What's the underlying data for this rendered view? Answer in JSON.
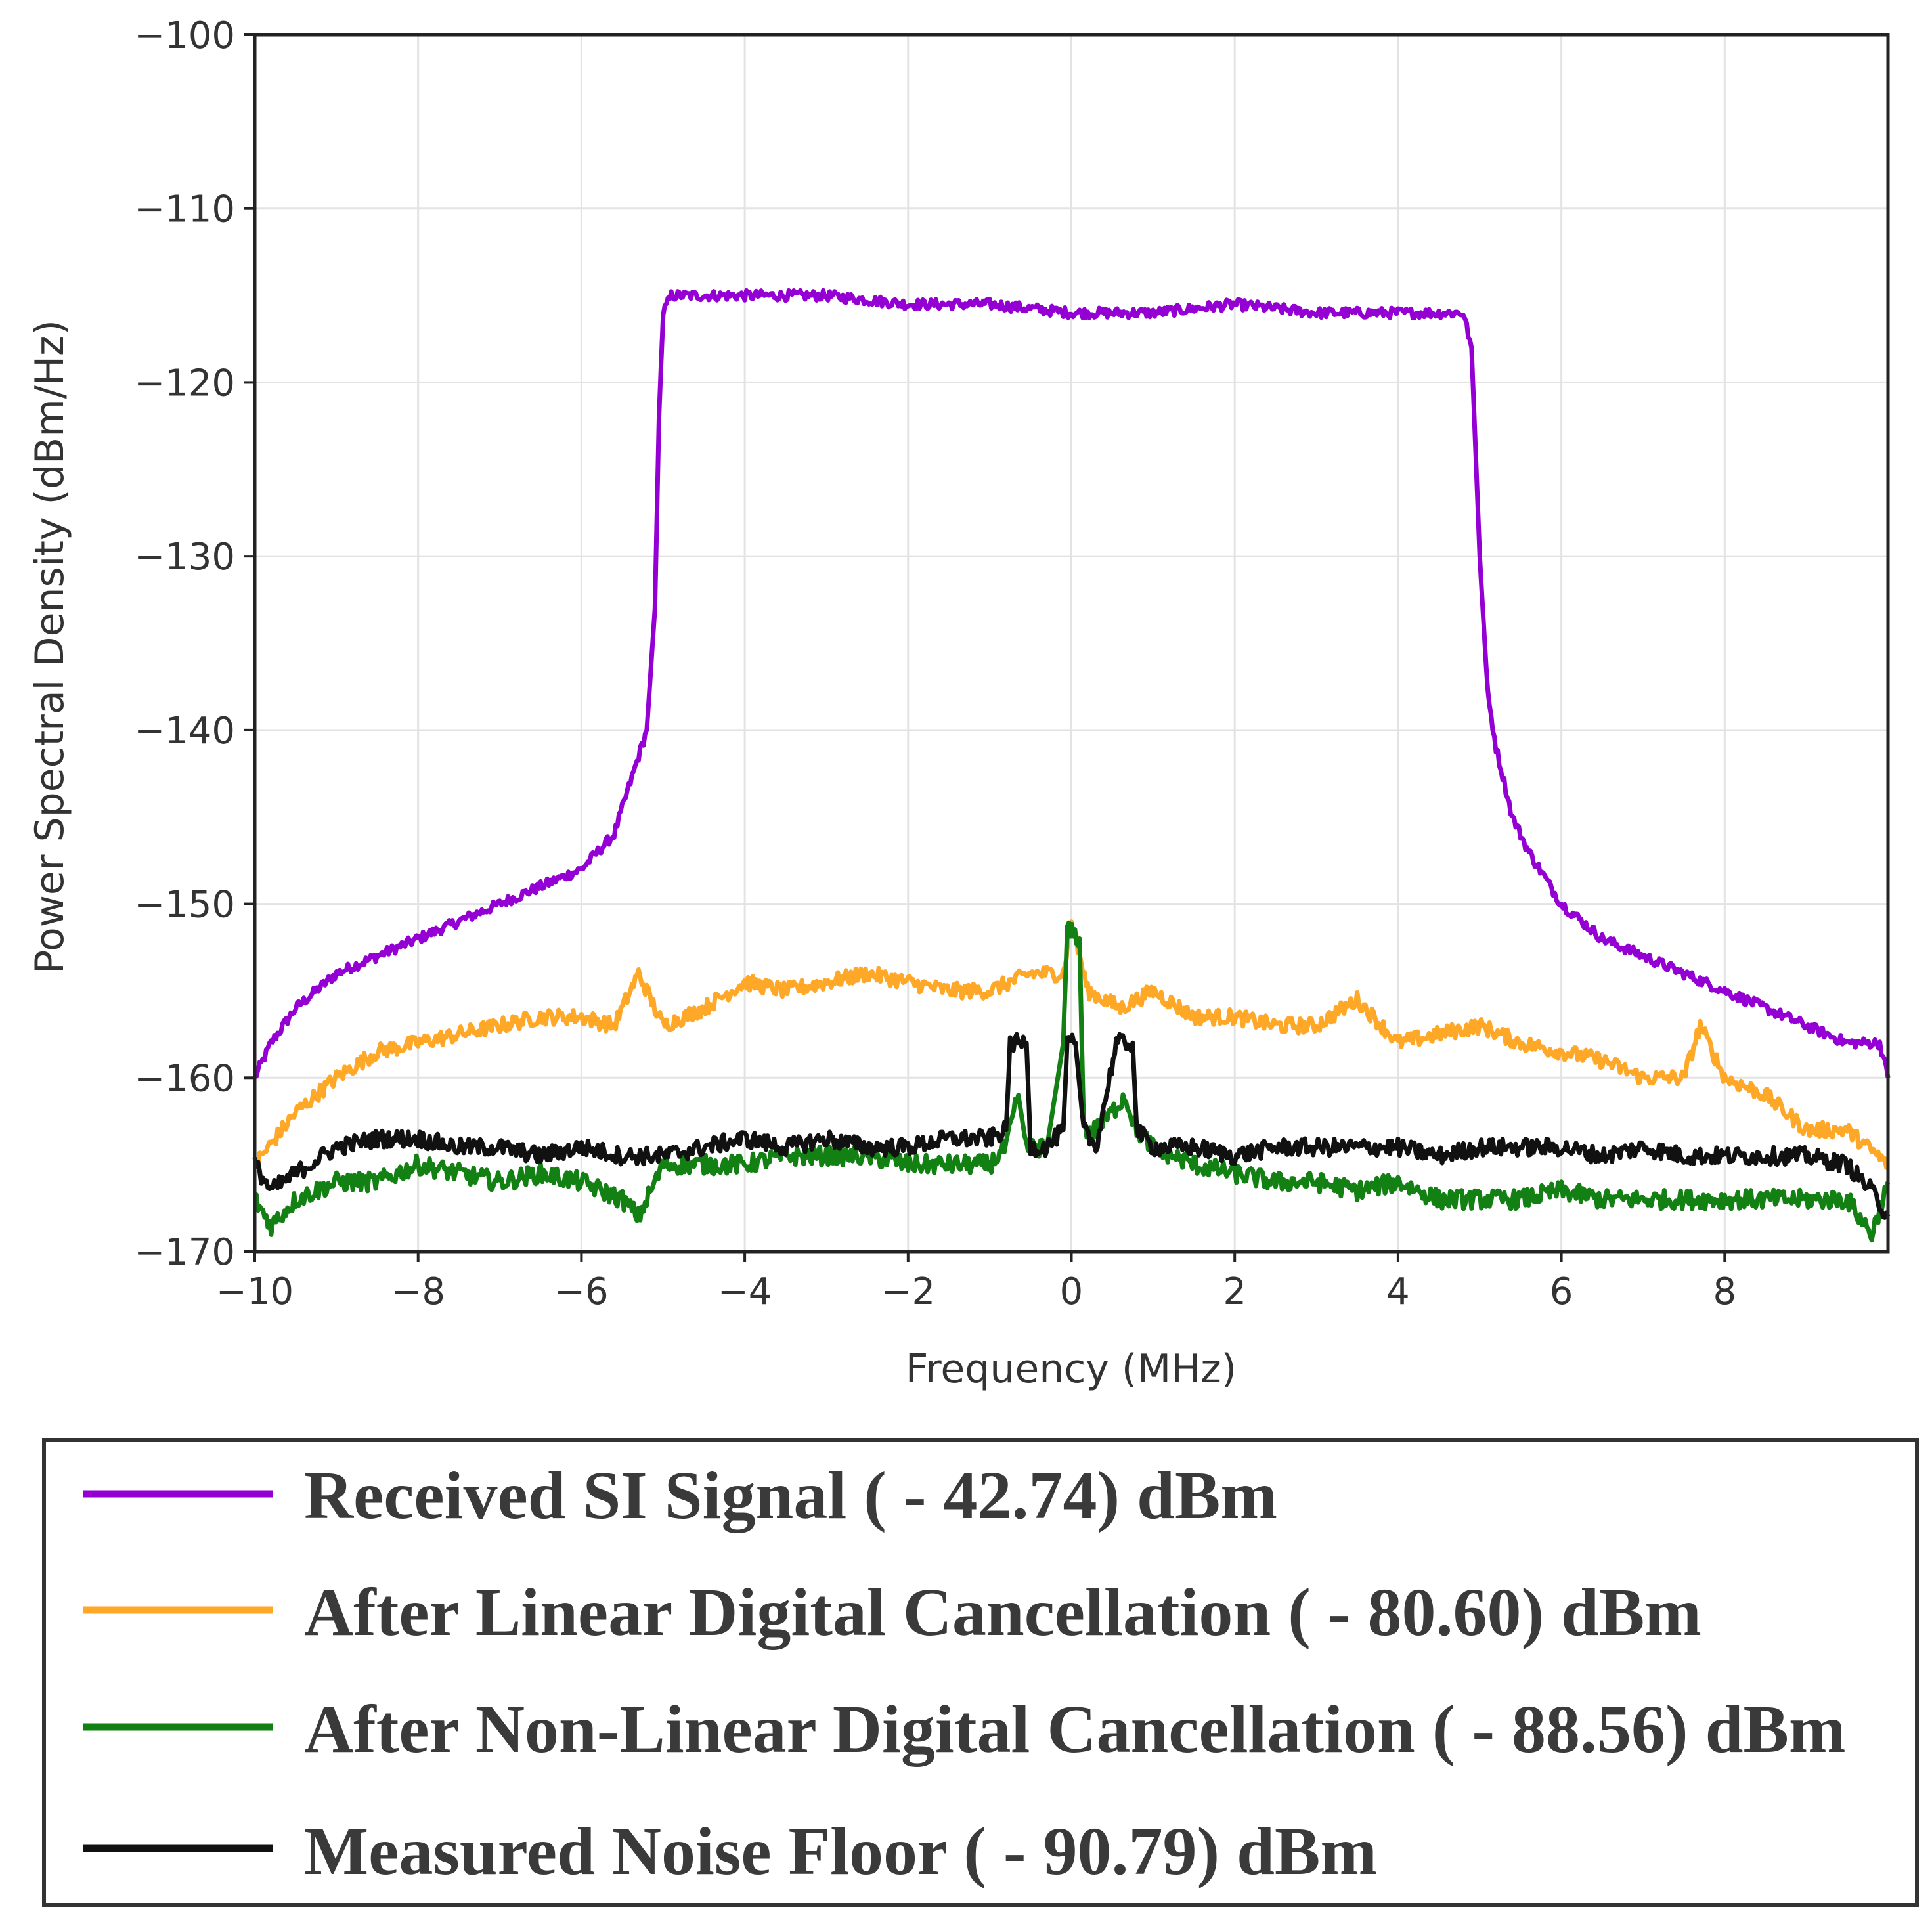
{
  "chart_data": {
    "type": "line",
    "title": "",
    "xlabel": "Frequency (MHz)",
    "ylabel": "Power Spectral Density (dBm/Hz)",
    "xlim": [
      -10,
      10
    ],
    "ylim": [
      -170,
      -100
    ],
    "x_ticks": [
      -10,
      -8,
      -6,
      -4,
      -2,
      0,
      2,
      4,
      6,
      8
    ],
    "x_tick_labels": [
      "−10",
      "−8",
      "−6",
      "−4",
      "−2",
      "0",
      "2",
      "4",
      "6",
      "8"
    ],
    "y_ticks": [
      -100,
      -110,
      -120,
      -130,
      -140,
      -150,
      -160,
      -170
    ],
    "y_tick_labels": [
      "−100",
      "−110",
      "−120",
      "−130",
      "−140",
      "−150",
      "−160",
      "−170"
    ],
    "grid": true,
    "legend_position": "below",
    "series": [
      {
        "name": "Received SI Signal ( - 42.74) dBm",
        "color": "#9400d3",
        "x": [
          -10,
          -9.8,
          -9.5,
          -9.0,
          -8.5,
          -8.0,
          -7.5,
          -7.0,
          -6.5,
          -6.0,
          -5.6,
          -5.4,
          -5.2,
          -5.1,
          -5.05,
          -5.0,
          -4.9,
          -4.0,
          -3.0,
          -2.0,
          -1.0,
          0.0,
          1.0,
          2.0,
          3.0,
          4.0,
          4.8,
          4.9,
          5.0,
          5.1,
          5.2,
          5.4,
          5.6,
          6.0,
          6.5,
          7.0,
          7.5,
          8.0,
          8.5,
          9.0,
          9.5,
          9.9,
          10.0
        ],
        "values": [
          -160,
          -158,
          -156,
          -154,
          -153,
          -152,
          -151,
          -150,
          -149,
          -148,
          -146,
          -143,
          -140,
          -133,
          -122,
          -116,
          -115,
          -115,
          -115,
          -115.5,
          -115.5,
          -116,
          -116,
          -115.5,
          -116,
          -116,
          -116,
          -118,
          -130,
          -138,
          -141,
          -145,
          -147,
          -150,
          -152,
          -153,
          -154,
          -155,
          -156,
          -157,
          -158,
          -158,
          -160
        ]
      },
      {
        "name": "After Linear Digital Cancellation ( - 80.60) dBm",
        "color": "#ffa726",
        "x": [
          -10,
          -9.5,
          -9.0,
          -8.5,
          -8.0,
          -7.5,
          -7.0,
          -6.5,
          -6.0,
          -5.6,
          -5.3,
          -5.0,
          -4.5,
          -4.0,
          -3.5,
          -3.0,
          -2.5,
          -2.0,
          -1.5,
          -1.0,
          -0.5,
          -0.1,
          0.0,
          0.2,
          0.6,
          1.0,
          1.5,
          2.0,
          2.5,
          3.0,
          3.5,
          4.0,
          4.5,
          5.0,
          5.5,
          6.0,
          6.5,
          7.0,
          7.5,
          7.7,
          8.0,
          8.5,
          9.0,
          9.5,
          10.0
        ],
        "values": [
          -165,
          -162,
          -160,
          -158.5,
          -158,
          -157.5,
          -157,
          -156.5,
          -156.5,
          -157,
          -154,
          -157,
          -156,
          -154.5,
          -155,
          -154.5,
          -154,
          -154.5,
          -155,
          -155,
          -154,
          -154,
          -151,
          -155,
          -156,
          -155,
          -156.5,
          -156.5,
          -157,
          -157,
          -155.5,
          -158,
          -157.5,
          -157,
          -158,
          -158.5,
          -159,
          -160,
          -160,
          -157,
          -160,
          -161,
          -163,
          -163,
          -165
        ]
      },
      {
        "name": "After Non-Linear Digital Cancellation ( - 88.56) dBm",
        "color": "#138013",
        "x": [
          -10,
          -9.8,
          -9.5,
          -9.0,
          -8.5,
          -8.0,
          -7.5,
          -7.0,
          -6.5,
          -6.0,
          -5.5,
          -5.3,
          -5.0,
          -4.5,
          -4.0,
          -3.5,
          -3.0,
          -2.5,
          -2.0,
          -1.5,
          -1.0,
          -0.8,
          -0.65,
          -0.55,
          -0.3,
          -0.1,
          -0.05,
          0.1,
          0.15,
          0.3,
          0.5,
          0.65,
          0.8,
          1.0,
          1.5,
          2.0,
          2.5,
          3.0,
          3.5,
          4.0,
          4.5,
          5.0,
          5.5,
          6.0,
          6.5,
          7.0,
          7.5,
          8.0,
          8.5,
          9.0,
          9.5,
          9.8,
          10.0
        ],
        "values": [
          -167,
          -168.5,
          -167,
          -166,
          -166,
          -165,
          -165.5,
          -166,
          -165.5,
          -166,
          -167,
          -168,
          -165,
          -165,
          -165,
          -164.5,
          -164.5,
          -164.5,
          -165,
          -165,
          -165,
          -164,
          -161,
          -164,
          -164,
          -158,
          -151.5,
          -152,
          -163,
          -163,
          -162,
          -161,
          -163,
          -164,
          -165,
          -165.5,
          -166,
          -166,
          -166.5,
          -166,
          -167,
          -167,
          -167,
          -166.5,
          -167,
          -167,
          -167,
          -167,
          -167,
          -167,
          -167,
          -169,
          -166
        ]
      },
      {
        "name": "Measured Noise Floor ( - 90.79) dBm",
        "color": "#111111",
        "x": [
          -10,
          -9.8,
          -9.5,
          -9.0,
          -8.5,
          -8.0,
          -7.5,
          -7.0,
          -6.5,
          -6.0,
          -5.5,
          -5.0,
          -4.5,
          -4.0,
          -3.5,
          -3.0,
          -2.5,
          -2.0,
          -1.5,
          -1.0,
          -0.8,
          -0.75,
          -0.65,
          -0.55,
          -0.5,
          -0.3,
          -0.1,
          -0.05,
          0.05,
          0.15,
          0.3,
          0.55,
          0.65,
          0.75,
          0.8,
          1.0,
          1.5,
          2.0,
          2.5,
          3.0,
          3.5,
          4.0,
          4.5,
          5.0,
          5.5,
          6.0,
          6.5,
          7.0,
          7.5,
          8.0,
          8.5,
          9.0,
          9.5,
          9.8,
          10.0
        ],
        "values": [
          -165,
          -166.5,
          -165.5,
          -164,
          -163.5,
          -163.5,
          -164,
          -164,
          -164.5,
          -164,
          -164.5,
          -164.5,
          -164,
          -163.5,
          -164,
          -163.5,
          -164,
          -164,
          -163.5,
          -163.5,
          -163,
          -158,
          -158,
          -158,
          -164,
          -164,
          -163,
          -158,
          -158,
          -163,
          -164,
          -158,
          -158,
          -158,
          -163,
          -164,
          -164,
          -164.5,
          -164,
          -164,
          -164,
          -164,
          -164.5,
          -164,
          -164,
          -164,
          -164.5,
          -164,
          -164.5,
          -164.5,
          -164.5,
          -164.5,
          -165,
          -166.5,
          -168
        ]
      }
    ]
  }
}
